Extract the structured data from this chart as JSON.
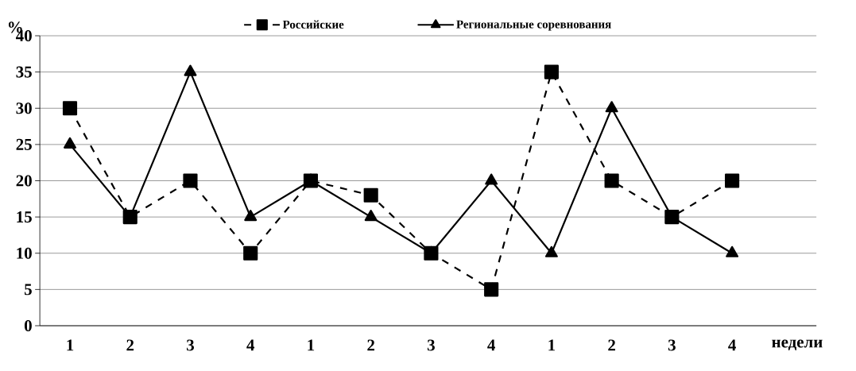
{
  "chart_data": {
    "type": "line",
    "ylabel": "%",
    "xlabel": "недели",
    "categories": [
      "1",
      "2",
      "3",
      "4",
      "1",
      "2",
      "3",
      "4",
      "1",
      "2",
      "3",
      "4"
    ],
    "series": [
      {
        "name": "Российские",
        "color": "#000000",
        "marker": "square",
        "line_style": "dashed",
        "values": [
          30,
          15,
          20,
          10,
          20,
          18,
          10,
          5,
          35,
          20,
          15,
          20
        ]
      },
      {
        "name": "Региональные соревнования",
        "color": "#000000",
        "marker": "triangle",
        "line_style": "solid",
        "values": [
          25,
          15,
          35,
          15,
          20,
          15,
          10,
          20,
          10,
          30,
          15,
          10
        ]
      }
    ],
    "ylim": [
      0,
      40
    ],
    "yticks": [
      0,
      5,
      10,
      15,
      20,
      25,
      30,
      35,
      40
    ],
    "grid": "y",
    "legend": "top"
  }
}
